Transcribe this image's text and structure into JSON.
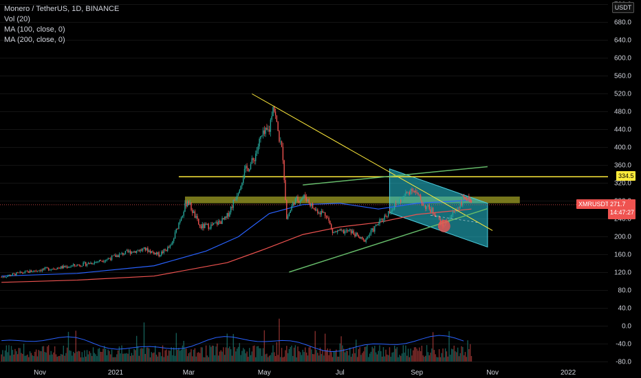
{
  "legend": {
    "title": "Monero / TetherUS, 1D, BINANCE",
    "vol": "Vol (20)",
    "ma100": "MA (100, close, 0)",
    "ma200": "MA (200, close, 0)"
  },
  "price_scale": {
    "unit": "USDT"
  },
  "tags": {
    "level": "334.5",
    "symbol": "XMRUSDT",
    "last_price": "271.7",
    "countdown": "14:47:27"
  },
  "colors": {
    "background": "#000000",
    "up": "#26a69a",
    "down": "#ef5350",
    "ma100": "#2962ff",
    "ma200": "#ef5350",
    "trendline_yellow": "#ffeb3b",
    "trendline_green": "#66bb6a",
    "channel_fill": "#26c6da",
    "zone": "#9e9d24"
  },
  "chart_data": {
    "type": "candlestick",
    "symbol": "XMRUSDT",
    "interval": "1D",
    "exchange": "BINANCE",
    "x_ticks": [
      "Nov",
      "2021",
      "Mar",
      "May",
      "Jul",
      "Sep",
      "Nov",
      "2022"
    ],
    "y_ticks": [
      "720.0",
      "680.0",
      "640.0",
      "600.0",
      "560.0",
      "520.0",
      "480.0",
      "440.0",
      "400.0",
      "360.0",
      "320.0",
      "280.0",
      "240.0",
      "200.0",
      "160.0",
      "120.0",
      "80.0",
      "40.0",
      "0.0",
      "-40.0",
      "-80.0"
    ],
    "ylim": [
      -85,
      725
    ],
    "price_path": [
      {
        "x": "Oct 1 2020",
        "y": 110
      },
      {
        "x": "Oct 15 2020",
        "y": 118
      },
      {
        "x": "Nov 1 2020",
        "y": 126
      },
      {
        "x": "Nov 20 2020",
        "y": 132
      },
      {
        "x": "Dec 10 2020",
        "y": 140
      },
      {
        "x": "Dec 25 2020",
        "y": 150
      },
      {
        "x": "Jan 10 2021",
        "y": 165
      },
      {
        "x": "Jan 25 2021",
        "y": 172
      },
      {
        "x": "Feb 5 2021",
        "y": 160
      },
      {
        "x": "Feb 15 2021",
        "y": 180
      },
      {
        "x": "Feb 22 2021",
        "y": 240
      },
      {
        "x": "Feb 28 2021",
        "y": 282
      },
      {
        "x": "Mar 10 2021",
        "y": 222
      },
      {
        "x": "Mar 20 2021",
        "y": 225
      },
      {
        "x": "Mar 31 2021",
        "y": 240
      },
      {
        "x": "Apr 8 2021",
        "y": 290
      },
      {
        "x": "Apr 15 2021",
        "y": 345
      },
      {
        "x": "Apr 22 2021",
        "y": 370
      },
      {
        "x": "Apr 28 2021",
        "y": 420
      },
      {
        "x": "May 5 2021",
        "y": 440
      },
      {
        "x": "May 8 2021",
        "y": 500
      },
      {
        "x": "May 12 2021",
        "y": 435
      },
      {
        "x": "May 16 2021",
        "y": 380
      },
      {
        "x": "May 19 2021",
        "y": 240
      },
      {
        "x": "May 25 2021",
        "y": 280
      },
      {
        "x": "Jun 3 2021",
        "y": 290
      },
      {
        "x": "Jun 10 2021",
        "y": 262
      },
      {
        "x": "Jun 20 2021",
        "y": 250
      },
      {
        "x": "Jun 25 2021",
        "y": 210
      },
      {
        "x": "Jul 10 2021",
        "y": 212
      },
      {
        "x": "Jul 20 2021",
        "y": 190
      },
      {
        "x": "Aug 1 2021",
        "y": 230
      },
      {
        "x": "Aug 10 2021",
        "y": 258
      },
      {
        "x": "Aug 20 2021",
        "y": 285
      },
      {
        "x": "Aug 28 2021",
        "y": 310
      },
      {
        "x": "Sep 7 2021",
        "y": 270
      },
      {
        "x": "Sep 15 2021",
        "y": 255
      },
      {
        "x": "Sep 22 2021",
        "y": 225
      },
      {
        "x": "Sep 28 2021",
        "y": 245
      },
      {
        "x": "Oct 5 2021",
        "y": 270
      },
      {
        "x": "Oct 10 2021",
        "y": 290
      },
      {
        "x": "Oct 15 2021",
        "y": 271.7
      }
    ],
    "horizontal_level": 334.5,
    "resistance_zone": [
      275,
      290
    ],
    "last_price": 271.7,
    "indicators": [
      "Vol (20)",
      "MA (100, close, 0)",
      "MA (200, close, 0)"
    ]
  }
}
